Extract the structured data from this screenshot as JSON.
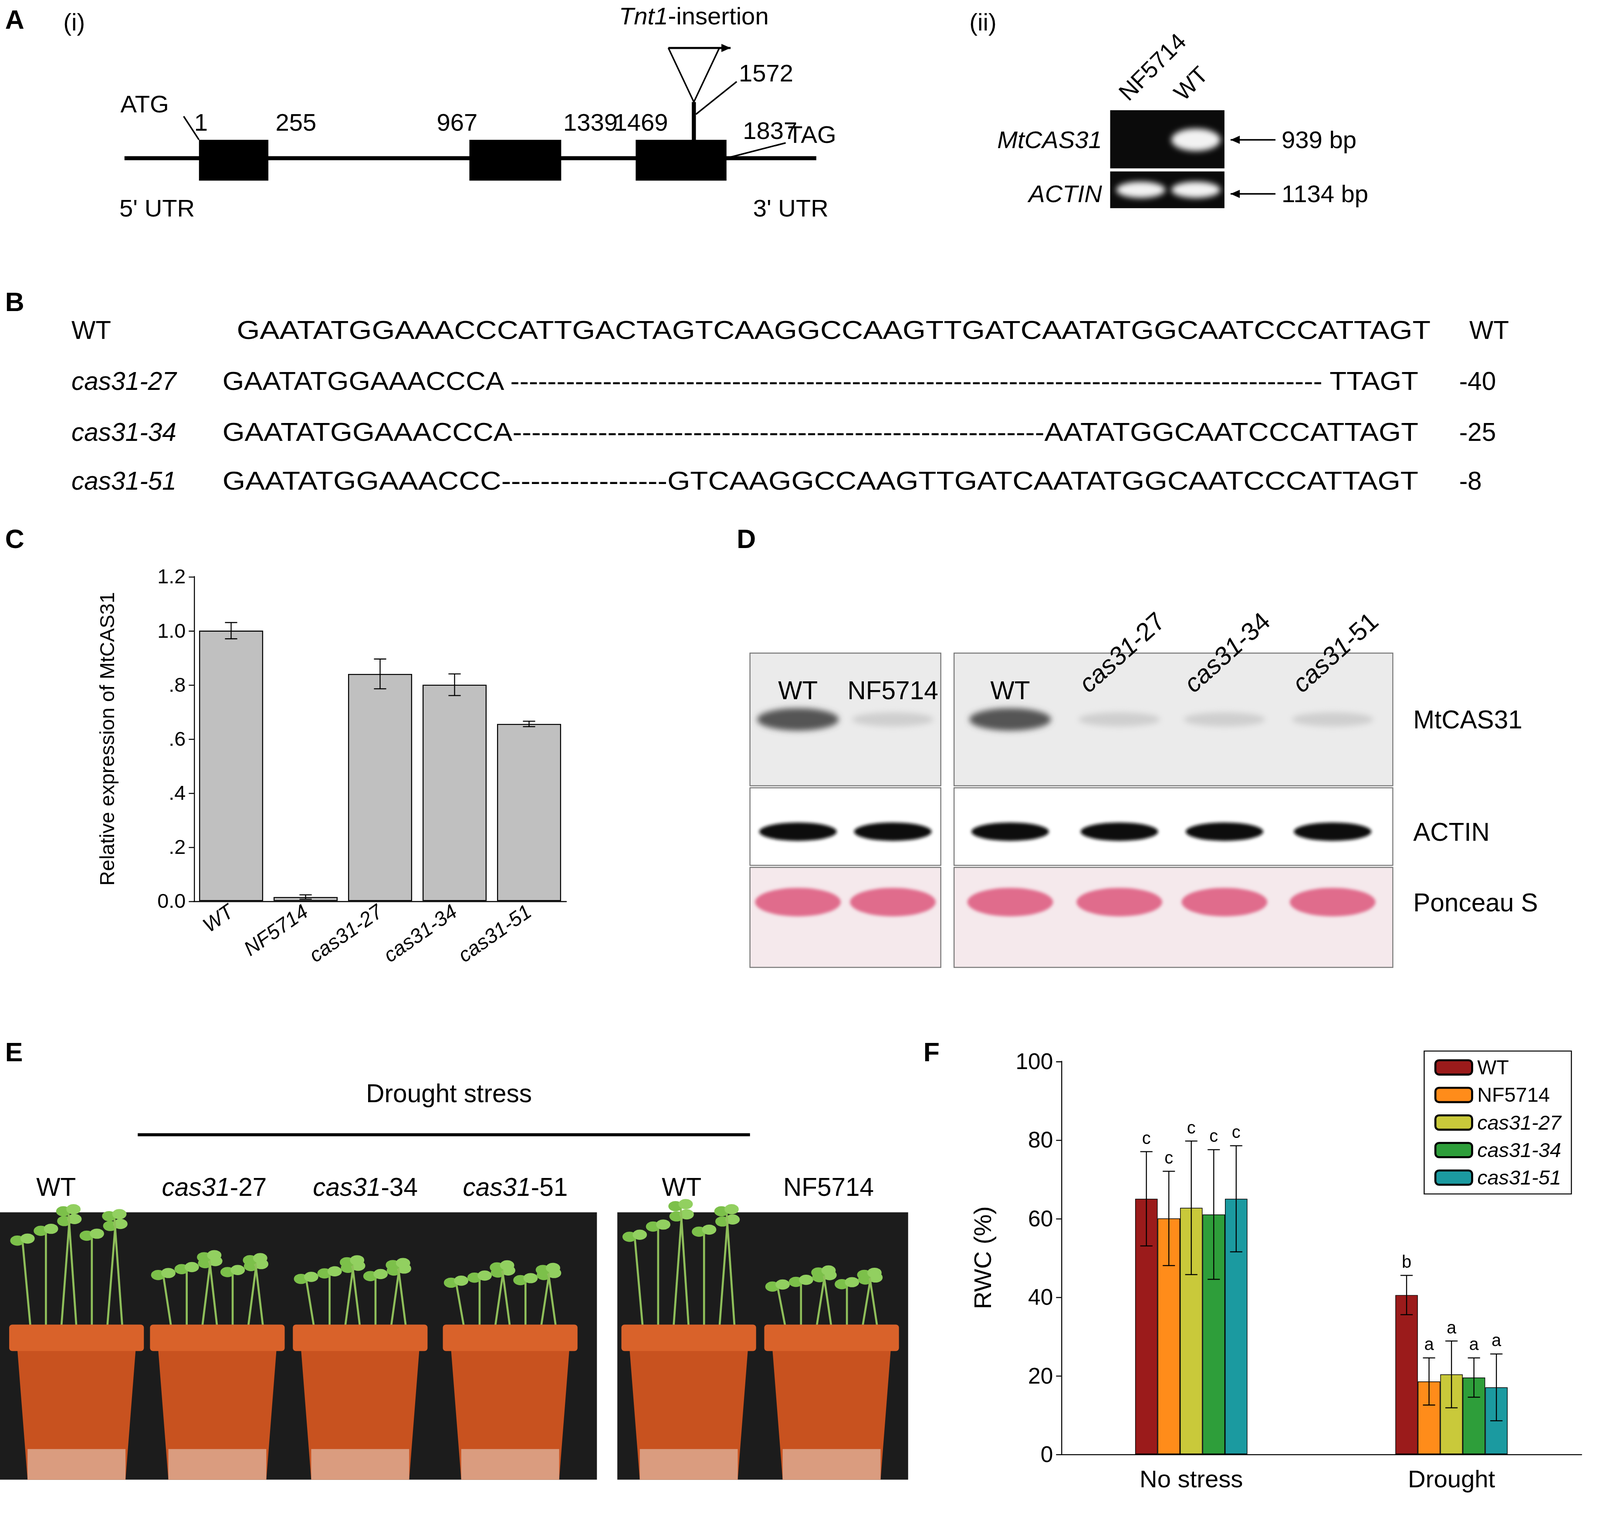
{
  "panels": {
    "A": {
      "label": "A",
      "i": {
        "label": "(i)",
        "start_codon": "ATG",
        "stop_codon": "TAG",
        "utr5": "5' UTR",
        "utr3": "3' UTR",
        "exons": [
          [
            1,
            255
          ],
          [
            967,
            1339
          ],
          [
            1469,
            1837
          ]
        ],
        "insertion": {
          "label": "Tnt1-insertion",
          "position": 1572
        }
      },
      "ii": {
        "label": "(ii)",
        "lanes": [
          "NF5714",
          "WT"
        ],
        "rows": [
          {
            "gene": "MtCAS31",
            "size": "939 bp",
            "bands": [
              false,
              true
            ]
          },
          {
            "gene": "ACTIN",
            "size": "1134 bp",
            "bands": [
              true,
              true
            ]
          }
        ]
      }
    },
    "B": {
      "label": "B",
      "rows": [
        {
          "name": "WT",
          "sequence": "GAATATGGAAACCCATTGACTAGTCAAGGCCAAGTTGATCAATATGGCAATCCCATTAGT",
          "right_label": "WT"
        },
        {
          "name": "cas31-27",
          "sequence": "GAATATGGAAACCCA ---------------------------------------------------------------------------------------- TTAGT",
          "right_label": "-40"
        },
        {
          "name": "cas31-34",
          "sequence": "GAATATGGAAACCCA--------------------------------------------------------AATATGGCAATCCCATTAGT",
          "right_label": "-25"
        },
        {
          "name": "cas31-51",
          "sequence": "GAATATGGAAACCC-----------------GTCAAGGCCAAGTTGATCAATATGGCAATCCCATTAGT",
          "right_label": "-8"
        }
      ]
    },
    "D": {
      "label": "D",
      "groups": [
        {
          "lanes": [
            "WT",
            "NF5714"
          ]
        },
        {
          "lanes": [
            "WT",
            "cas31-27",
            "cas31-34",
            "cas31-51"
          ]
        }
      ],
      "rows": [
        {
          "label": "MtCAS31",
          "bands": [
            [
              true,
              false
            ],
            [
              true,
              false,
              false,
              false
            ]
          ]
        },
        {
          "label": "ACTIN",
          "bands": [
            [
              true,
              true
            ],
            [
              true,
              true,
              true,
              true
            ]
          ]
        },
        {
          "label": "Ponceau S",
          "bands": [
            [
              true,
              true
            ],
            [
              true,
              true,
              true,
              true
            ]
          ]
        }
      ]
    },
    "E": {
      "label": "E",
      "treatment": "Drought stress",
      "groups": [
        {
          "lanes": [
            "WT",
            "cas31-27",
            "cas31-34",
            "cas31-51"
          ]
        },
        {
          "lanes": [
            "WT",
            "NF5714"
          ]
        }
      ]
    }
  },
  "chart_data": [
    {
      "panel": "C",
      "type": "bar",
      "categories": [
        "WT",
        "NF5714",
        "cas31-27",
        "cas31-34",
        "cas31-51"
      ],
      "values": [
        1.0,
        0.015,
        0.84,
        0.8,
        0.655
      ],
      "errors": [
        0.03,
        0.008,
        0.055,
        0.04,
        0.01
      ],
      "y_label": "Relative expression of MtCAS31",
      "ylim": [
        0,
        1.2
      ],
      "yticks": [
        {
          "value": 0,
          "label": "0.0"
        },
        {
          "value": 0.2,
          "label": ".2"
        },
        {
          "value": 0.4,
          "label": ".4"
        },
        {
          "value": 0.6,
          "label": ".6"
        },
        {
          "value": 0.8,
          "label": ".8"
        },
        {
          "value": 1.0,
          "label": "1.0"
        },
        {
          "value": 1.2,
          "label": "1.2"
        }
      ],
      "color": "#c0c0c0",
      "grid": false
    },
    {
      "panel": "F",
      "type": "bar",
      "categories": [
        "No stress",
        "Drought"
      ],
      "series": [
        {
          "name": "WT",
          "color": "#9b1b1b",
          "values": [
            65,
            40.5
          ],
          "errors": [
            12,
            5
          ],
          "letters": [
            "c",
            "b"
          ]
        },
        {
          "name": "NF5714",
          "color": "#ff8c1a",
          "values": [
            60,
            18.5
          ],
          "errors": [
            12,
            6
          ],
          "letters": [
            "c",
            "a"
          ]
        },
        {
          "name": "cas31-27",
          "color": "#c9c93a",
          "values": [
            62.7,
            20.3
          ],
          "errors": [
            17,
            8.5
          ],
          "letters": [
            "c",
            "a"
          ]
        },
        {
          "name": "cas31-34",
          "color": "#2e9e3a",
          "values": [
            61,
            19.5
          ],
          "errors": [
            16.5,
            5
          ],
          "letters": [
            "c",
            "a"
          ]
        },
        {
          "name": "cas31-51",
          "color": "#1b9aa0",
          "values": [
            65,
            17
          ],
          "errors": [
            13.5,
            8.5
          ],
          "letters": [
            "c",
            "a"
          ]
        }
      ],
      "y_label": "RWC (%)",
      "ylim": [
        0,
        100
      ],
      "yticks": [
        0,
        20,
        40,
        60,
        80,
        100
      ],
      "legend": "top-right",
      "grid": false
    }
  ]
}
